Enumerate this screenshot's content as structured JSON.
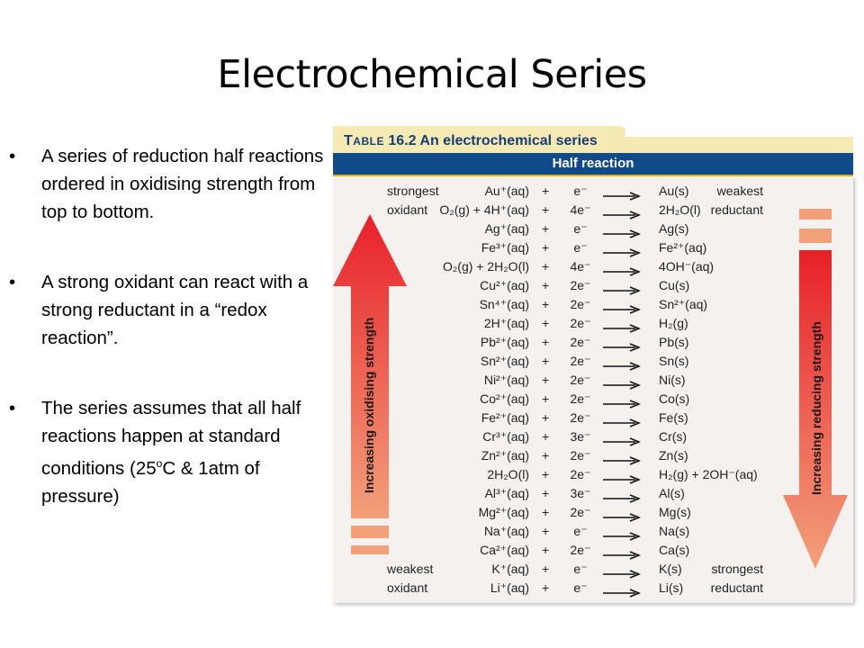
{
  "slide": {
    "title": "Electrochemical Series",
    "bullets": [
      {
        "text": "A series of reduction half reactions ordered in oxidising strength from top to bottom."
      },
      {
        "text": "A strong oxidant can react with a strong reductant in a “redox reaction”."
      },
      {
        "text_before": "The series assumes that all half reactions happen at standard conditions (25",
        "sup": "o",
        "text_after": "C & 1atm of pressure)"
      }
    ]
  },
  "table": {
    "caption_table_word_first": "T",
    "caption_table_word_rest": "ABLE",
    "caption_rest": " 16.2 An electrochemical series",
    "header": "Half reaction",
    "left_arrow_label": "Increasing oxidising strength",
    "right_arrow_label": "Increasing reducing strength",
    "arrow_color_top": "#e8202a",
    "arrow_color_bottom": "#f2a07a",
    "rows": [
      {
        "left": "strongest",
        "oxidant": "Au⁺(aq)",
        "plus": "+",
        "electrons": "e⁻",
        "reductant": "Au(s)",
        "right": "weakest"
      },
      {
        "left": "oxidant",
        "oxidant": "O₂(g) + 4H⁺(aq)",
        "plus": "+",
        "electrons": "4e⁻",
        "reductant": "2H₂O(l)",
        "right": "reductant"
      },
      {
        "left": "",
        "oxidant": "Ag⁺(aq)",
        "plus": "+",
        "electrons": "e⁻",
        "reductant": "Ag(s)",
        "right": ""
      },
      {
        "left": "",
        "oxidant": "Fe³⁺(aq)",
        "plus": "+",
        "electrons": "e⁻",
        "reductant": "Fe²⁺(aq)",
        "right": ""
      },
      {
        "left": "",
        "oxidant": "O₂(g) + 2H₂O(l)",
        "plus": "+",
        "electrons": "4e⁻",
        "reductant": "4OH⁻(aq)",
        "right": ""
      },
      {
        "left": "",
        "oxidant": "Cu²⁺(aq)",
        "plus": "+",
        "electrons": "2e⁻",
        "reductant": "Cu(s)",
        "right": ""
      },
      {
        "left": "",
        "oxidant": "Sn⁴⁺(aq)",
        "plus": "+",
        "electrons": "2e⁻",
        "reductant": "Sn²⁺(aq)",
        "right": ""
      },
      {
        "left": "",
        "oxidant": "2H⁺(aq)",
        "plus": "+",
        "electrons": "2e⁻",
        "reductant": "H₂(g)",
        "right": ""
      },
      {
        "left": "",
        "oxidant": "Pb²⁺(aq)",
        "plus": "+",
        "electrons": "2e⁻",
        "reductant": "Pb(s)",
        "right": ""
      },
      {
        "left": "",
        "oxidant": "Sn²⁺(aq)",
        "plus": "+",
        "electrons": "2e⁻",
        "reductant": "Sn(s)",
        "right": ""
      },
      {
        "left": "",
        "oxidant": "Ni²⁺(aq)",
        "plus": "+",
        "electrons": "2e⁻",
        "reductant": "Ni(s)",
        "right": ""
      },
      {
        "left": "",
        "oxidant": "Co²⁺(aq)",
        "plus": "+",
        "electrons": "2e⁻",
        "reductant": "Co(s)",
        "right": ""
      },
      {
        "left": "",
        "oxidant": "Fe²⁺(aq)",
        "plus": "+",
        "electrons": "2e⁻",
        "reductant": "Fe(s)",
        "right": ""
      },
      {
        "left": "",
        "oxidant": "Cr³⁺(aq)",
        "plus": "+",
        "electrons": "3e⁻",
        "reductant": "Cr(s)",
        "right": ""
      },
      {
        "left": "",
        "oxidant": "Zn²⁺(aq)",
        "plus": "+",
        "electrons": "2e⁻",
        "reductant": "Zn(s)",
        "right": ""
      },
      {
        "left": "",
        "oxidant": "2H₂O(l)",
        "plus": "+",
        "electrons": "2e⁻",
        "reductant": "H₂(g) + 2OH⁻(aq)",
        "right": ""
      },
      {
        "left": "",
        "oxidant": "Al³⁺(aq)",
        "plus": "+",
        "electrons": "3e⁻",
        "reductant": "Al(s)",
        "right": ""
      },
      {
        "left": "",
        "oxidant": "Mg²⁺(aq)",
        "plus": "+",
        "electrons": "2e⁻",
        "reductant": "Mg(s)",
        "right": ""
      },
      {
        "left": "",
        "oxidant": "Na⁺(aq)",
        "plus": "+",
        "electrons": "e⁻",
        "reductant": "Na(s)",
        "right": ""
      },
      {
        "left": "",
        "oxidant": "Ca²⁺(aq)",
        "plus": "+",
        "electrons": "2e⁻",
        "reductant": "Ca(s)",
        "right": ""
      },
      {
        "left": "weakest",
        "oxidant": "K⁺(aq)",
        "plus": "+",
        "electrons": "e⁻",
        "reductant": "K(s)",
        "right": "strongest"
      },
      {
        "left": "oxidant",
        "oxidant": "Li⁺(aq)",
        "plus": "+",
        "electrons": "e⁻",
        "reductant": "Li(s)",
        "right": "reductant"
      }
    ]
  }
}
